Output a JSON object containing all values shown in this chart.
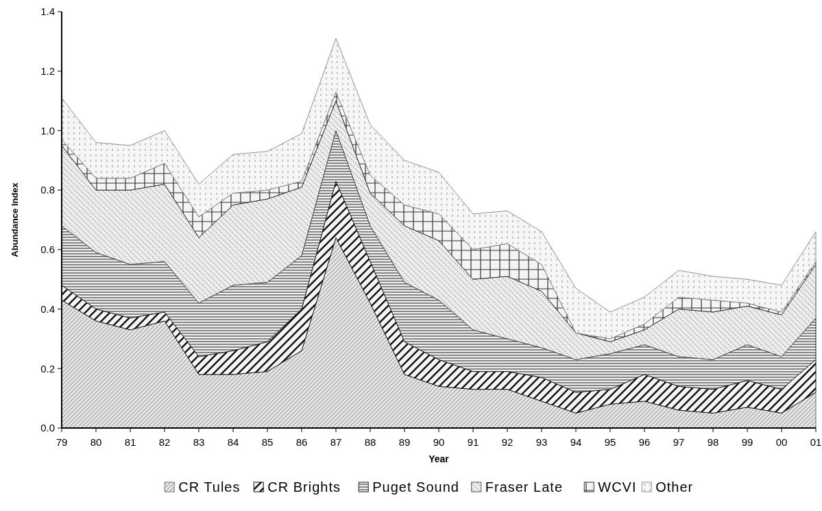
{
  "chart_data": {
    "type": "area",
    "stacked": true,
    "xlabel": "Year",
    "ylabel": "Abundance Index",
    "categories": [
      "79",
      "80",
      "81",
      "82",
      "83",
      "84",
      "85",
      "86",
      "87",
      "88",
      "89",
      "90",
      "91",
      "92",
      "93",
      "94",
      "95",
      "96",
      "97",
      "98",
      "99",
      "00",
      "01"
    ],
    "ylim": [
      0,
      1.4
    ],
    "yticks": [
      {
        "value": 0,
        "label": "0.0"
      },
      {
        "value": 0.2,
        "label": "0.2"
      },
      {
        "value": 0.4,
        "label": "0.4"
      },
      {
        "value": 0.6,
        "label": "0.6"
      },
      {
        "value": 0.8,
        "label": "0.8"
      },
      {
        "value": 1.0,
        "label": "1.0"
      },
      {
        "value": 1.2,
        "label": "1.2"
      },
      {
        "value": 1.4,
        "label": "1.4"
      }
    ],
    "grid": false,
    "legend": "bottom",
    "series": [
      {
        "name": "CR Tules",
        "color": "#707070",
        "values": [
          0.43,
          0.36,
          0.33,
          0.36,
          0.18,
          0.18,
          0.19,
          0.26,
          0.64,
          0.42,
          0.18,
          0.14,
          0.13,
          0.13,
          0.09,
          0.05,
          0.08,
          0.09,
          0.06,
          0.05,
          0.07,
          0.05,
          0.12
        ]
      },
      {
        "name": "CR Brights",
        "color": "#101010",
        "values": [
          0.05,
          0.04,
          0.04,
          0.03,
          0.06,
          0.08,
          0.1,
          0.14,
          0.19,
          0.14,
          0.11,
          0.09,
          0.06,
          0.06,
          0.08,
          0.07,
          0.05,
          0.09,
          0.08,
          0.08,
          0.09,
          0.08,
          0.11
        ]
      },
      {
        "name": "Puget Sound",
        "color": "#202020",
        "values": [
          0.2,
          0.19,
          0.18,
          0.17,
          0.18,
          0.22,
          0.2,
          0.18,
          0.17,
          0.12,
          0.2,
          0.2,
          0.14,
          0.11,
          0.1,
          0.11,
          0.12,
          0.1,
          0.1,
          0.1,
          0.12,
          0.11,
          0.14
        ]
      },
      {
        "name": "Fraser Late",
        "color": "#505050",
        "values": [
          0.27,
          0.21,
          0.25,
          0.26,
          0.22,
          0.27,
          0.28,
          0.23,
          0.1,
          0.11,
          0.19,
          0.2,
          0.17,
          0.21,
          0.19,
          0.09,
          0.04,
          0.05,
          0.16,
          0.16,
          0.13,
          0.14,
          0.18
        ]
      },
      {
        "name": "WCVI",
        "color": "#303030",
        "values": [
          0.02,
          0.04,
          0.04,
          0.07,
          0.07,
          0.04,
          0.03,
          0.02,
          0.03,
          0.06,
          0.07,
          0.09,
          0.1,
          0.11,
          0.09,
          0.0,
          0.01,
          0.02,
          0.04,
          0.04,
          0.01,
          0.01,
          0.01
        ]
      },
      {
        "name": "Other",
        "color": "#909090",
        "values": [
          0.14,
          0.12,
          0.11,
          0.11,
          0.11,
          0.13,
          0.13,
          0.16,
          0.18,
          0.17,
          0.15,
          0.14,
          0.12,
          0.11,
          0.11,
          0.15,
          0.09,
          0.09,
          0.09,
          0.08,
          0.08,
          0.09,
          0.1
        ]
      }
    ]
  }
}
